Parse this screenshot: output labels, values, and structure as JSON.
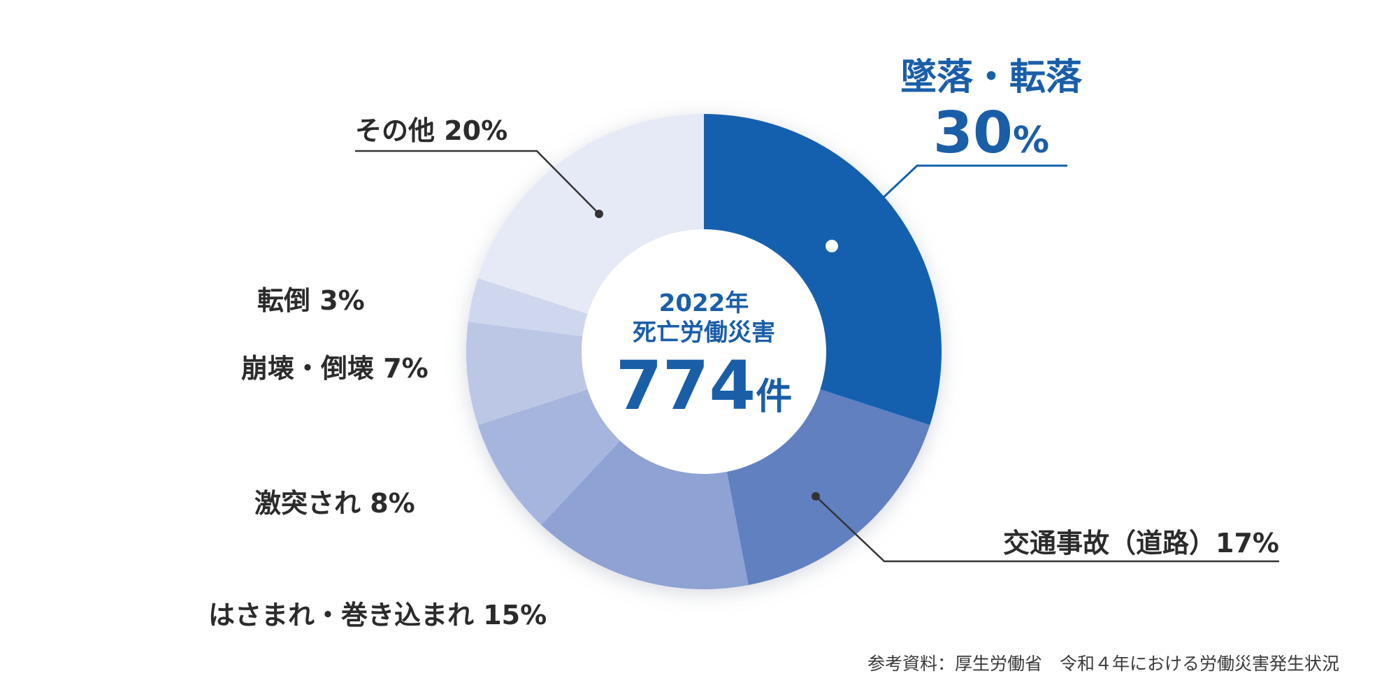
{
  "chart_data": {
    "type": "pie",
    "donut": true,
    "center": {
      "line1": "2022年",
      "line2": "死亡労働災害",
      "value": "774",
      "unit": "件"
    },
    "slices": [
      {
        "label": "墜落・転落",
        "value": 30,
        "value_text": "30",
        "percent_sign": "%",
        "color": "#1560ae"
      },
      {
        "label": "交通事故（道路）",
        "value": 17,
        "display": "交通事故（道路）17%",
        "color": "#6080c0"
      },
      {
        "label": "はさまれ・巻き込まれ",
        "value": 15,
        "display": "はさまれ・巻き込まれ 15%",
        "color": "#8ea2d3"
      },
      {
        "label": "激突され",
        "value": 8,
        "display": "激突され 8%",
        "color": "#a6b5dd"
      },
      {
        "label": "崩壊・倒壊",
        "value": 7,
        "display": "崩壊・倒壊 7%",
        "color": "#bcc7e6"
      },
      {
        "label": "転倒",
        "value": 3,
        "display": "転倒 3%",
        "color": "#cfd7ee"
      },
      {
        "label": "その他",
        "value": 20,
        "display": "その他 20%",
        "color": "#e6eaf6"
      }
    ],
    "source": "参考資料：厚生労働省　令和４年における労働災害発生状況"
  }
}
